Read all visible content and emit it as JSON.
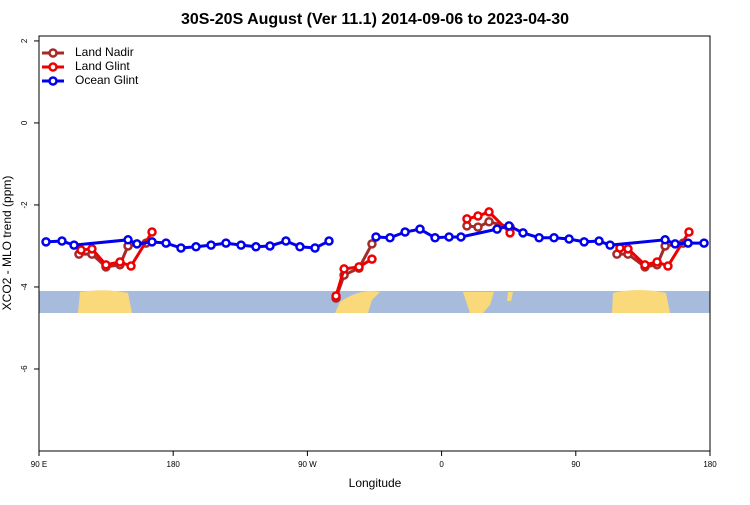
{
  "chart_data": {
    "type": "line",
    "title": "30S-20S August (Ver 11.1)   2014-09-06 to 2023-04-30",
    "x_label": "Longitude",
    "y_label": "XCO2 - MLO trend (ppm)",
    "xlim": [
      -270,
      180
    ],
    "xticks": [
      {
        "value": -270,
        "label": "90 E"
      },
      {
        "value": -180,
        "label": "180"
      },
      {
        "value": -90,
        "label": "90 W"
      },
      0,
      90,
      {
        "value": 180,
        "label": "180"
      }
    ],
    "ylim": [
      -8,
      2.12
    ],
    "yticks": [
      -6,
      -4,
      -2,
      0,
      2
    ],
    "legend": "top-left",
    "series": [
      {
        "name": "Land Nadir",
        "color": "#a52a2a",
        "x": [
          -243.2,
          -234.5,
          -225.1,
          -215.7,
          -210.3,
          -198.2,
          -120,
          -70.8,
          -65.4,
          -55.4,
          -46.7,
          0,
          17,
          24.4,
          31.8,
          45.9,
          90,
          117.6,
          125,
          136.4,
          144.5,
          149.9,
          162
        ],
        "values": [
          -3.2,
          -3.2,
          -3.51,
          -3.46,
          -3.0,
          -2.93,
          null,
          -4.27,
          -3.71,
          -3.54,
          -2.95,
          null,
          -2.51,
          -2.54,
          -2.41,
          -2.54,
          null,
          -3.2,
          -3.2,
          -3.51,
          -3.46,
          -3.0,
          -2.93
        ]
      },
      {
        "name": "Land Glint",
        "color": "#ee0000",
        "x": [
          -241.8,
          -234.5,
          -225.1,
          -215.7,
          -208.3,
          -194.2,
          -120,
          -70.8,
          -65.4,
          -55.4,
          -46.7,
          0,
          17,
          24.4,
          31.8,
          45.9,
          90,
          119.6,
          125,
          136.4,
          144.5,
          151.8,
          165.9
        ],
        "values": [
          -3.1,
          -3.07,
          -3.46,
          -3.39,
          -3.49,
          -2.66,
          null,
          -4.22,
          -3.56,
          -3.51,
          -3.32,
          null,
          -2.34,
          -2.27,
          -2.17,
          -2.68,
          null,
          -3.05,
          -3.07,
          -3.46,
          -3.39,
          -3.49,
          -2.66
        ]
      },
      {
        "name": "Ocean Glint",
        "color": "#0000ee",
        "x": [
          -265.3,
          -254.6,
          -246.5,
          -210.3,
          -204.3,
          -194.2,
          -184.8,
          -174.8,
          -164.7,
          -154.6,
          -144.6,
          -134.5,
          -124.5,
          -115.1,
          -104.4,
          -95,
          -84.9,
          -75.5,
          -60,
          -44,
          -34.6,
          -24.5,
          -14.5,
          -4.4,
          5,
          13,
          37.2,
          45.2,
          54.6,
          65.4,
          75.4,
          85.5,
          95.6,
          105.6,
          113,
          149.9,
          156.6,
          165.3,
          176
        ],
        "values": [
          -2.9,
          -2.88,
          -2.98,
          -2.85,
          -2.95,
          -2.9,
          -2.93,
          -3.05,
          -3.02,
          -2.98,
          -2.93,
          -2.98,
          -3.02,
          -3.0,
          -2.88,
          -3.02,
          -3.05,
          -2.88,
          null,
          -2.78,
          -2.8,
          -2.66,
          -2.59,
          -2.8,
          -2.78,
          -2.78,
          -2.59,
          -2.51,
          -2.68,
          -2.8,
          -2.8,
          -2.83,
          -2.9,
          -2.88,
          -2.98,
          -2.85,
          -2.95,
          -2.93,
          -2.93
        ]
      }
    ]
  }
}
